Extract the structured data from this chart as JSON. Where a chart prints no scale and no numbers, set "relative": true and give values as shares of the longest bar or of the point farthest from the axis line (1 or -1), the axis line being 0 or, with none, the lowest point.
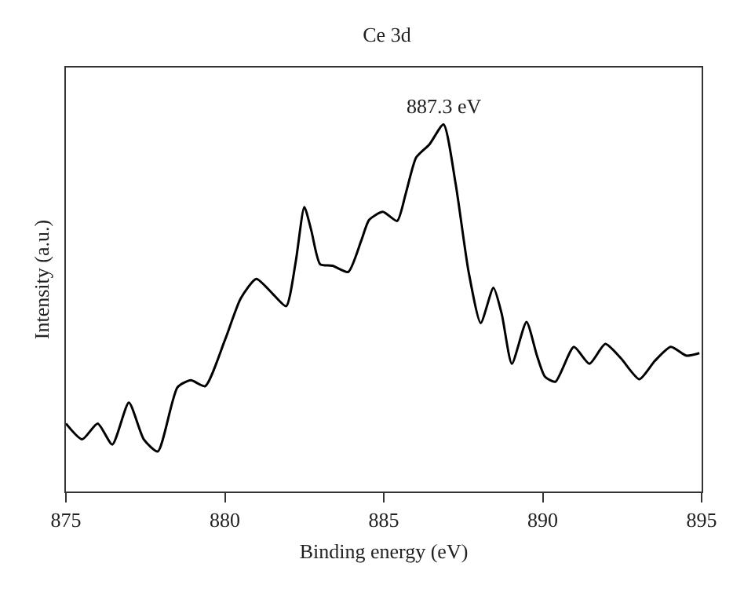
{
  "chart_data": {
    "type": "line",
    "title": "Ce 3d",
    "xlabel": "Binding energy (eV)",
    "ylabel": "Intensity (a.u.)",
    "relative": true,
    "xlim": [
      875,
      895
    ],
    "xticks": [
      875,
      880,
      885,
      890,
      895
    ],
    "marker": "none",
    "line_style": "solid",
    "annotations": [
      {
        "text": "887.3 eV",
        "x": 886.9,
        "y": 1
      }
    ],
    "series": [
      {
        "color": "#000000",
        "x": [
          875,
          875.51,
          876,
          876.46,
          876.98,
          877.45,
          877.89,
          878.51,
          878.93,
          879.38,
          880,
          880.5,
          880.99,
          881.49,
          881.93,
          882.23,
          882.5,
          882.72,
          883,
          883.39,
          883.88,
          884.29,
          884.54,
          884.97,
          885.42,
          885.69,
          886.02,
          886.44,
          886.88,
          887.26,
          887.67,
          888.05,
          888.45,
          888.71,
          889.03,
          889.49,
          889.82,
          890.07,
          890.4,
          890.98,
          891.47,
          891.97,
          892.46,
          893.04,
          893.53,
          894.03,
          894.52,
          894.93
        ],
        "values": [
          0.185,
          0.142,
          0.185,
          0.128,
          0.242,
          0.142,
          0.109,
          0.284,
          0.303,
          0.287,
          0.412,
          0.526,
          0.579,
          0.54,
          0.505,
          0.626,
          0.775,
          0.711,
          0.619,
          0.615,
          0.598,
          0.683,
          0.74,
          0.762,
          0.737,
          0.811,
          0.91,
          0.946,
          1,
          0.839,
          0.598,
          0.459,
          0.555,
          0.484,
          0.348,
          0.462,
          0.37,
          0.313,
          0.299,
          0.394,
          0.348,
          0.402,
          0.363,
          0.306,
          0.356,
          0.394,
          0.37,
          0.377
        ]
      }
    ]
  }
}
